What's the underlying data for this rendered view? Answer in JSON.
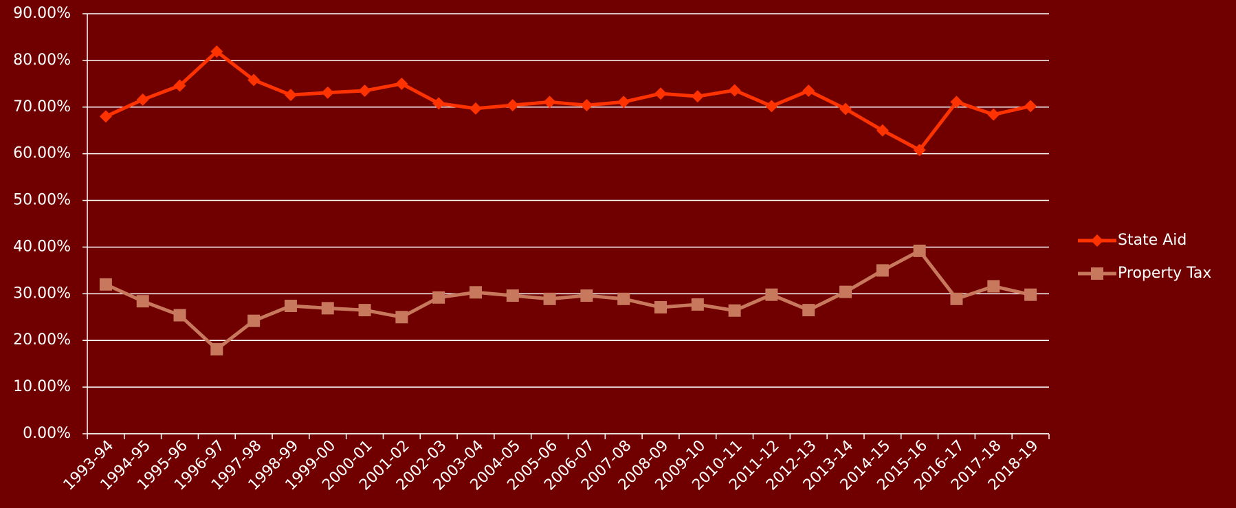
{
  "chart_data": {
    "type": "line",
    "categories": [
      "1993-94",
      "1994-95",
      "1995-96",
      "1996-97",
      "1997-98",
      "1998-99",
      "1999-00",
      "2000-01",
      "2001-02",
      "2002-03",
      "2003-04",
      "2004-05",
      "2005-06",
      "2006-07",
      "2007-08",
      "2008-09",
      "2009-10",
      "2010-11",
      "2011-12",
      "2012-13",
      "2013-14",
      "2014-15",
      "2015-16",
      "2016-17",
      "2017-18",
      "2018-19"
    ],
    "series": [
      {
        "name": "State Aid",
        "color": "#ff3300",
        "marker": "diamond",
        "values": [
          68.0,
          71.6,
          74.6,
          81.9,
          75.8,
          72.6,
          73.1,
          73.5,
          75.0,
          70.8,
          69.7,
          70.4,
          71.1,
          70.4,
          71.1,
          72.9,
          72.3,
          73.6,
          70.2,
          73.5,
          69.6,
          65.0,
          60.8,
          71.1,
          68.4,
          70.2
        ]
      },
      {
        "name": "Property Tax",
        "color": "#c8785c",
        "marker": "square",
        "values": [
          32.0,
          28.4,
          25.4,
          18.1,
          24.2,
          27.4,
          26.9,
          26.5,
          25.0,
          29.2,
          30.3,
          29.6,
          28.9,
          29.6,
          28.9,
          27.1,
          27.7,
          26.4,
          29.8,
          26.5,
          30.4,
          35.0,
          39.2,
          28.9,
          31.6,
          29.8
        ]
      }
    ],
    "ylim": [
      0,
      90
    ],
    "yticks": [
      {
        "value": 0,
        "label": "0.00%"
      },
      {
        "value": 10,
        "label": "10.00%"
      },
      {
        "value": 20,
        "label": "20.00%"
      },
      {
        "value": 30,
        "label": "30.00%"
      },
      {
        "value": 40,
        "label": "40.00%"
      },
      {
        "value": 50,
        "label": "50.00%"
      },
      {
        "value": 60,
        "label": "60.00%"
      },
      {
        "value": 70,
        "label": "70.00%"
      },
      {
        "value": 80,
        "label": "80.00%"
      },
      {
        "value": 90,
        "label": "90.00%"
      }
    ],
    "grid": true,
    "legend": "right",
    "background": "#700000"
  }
}
